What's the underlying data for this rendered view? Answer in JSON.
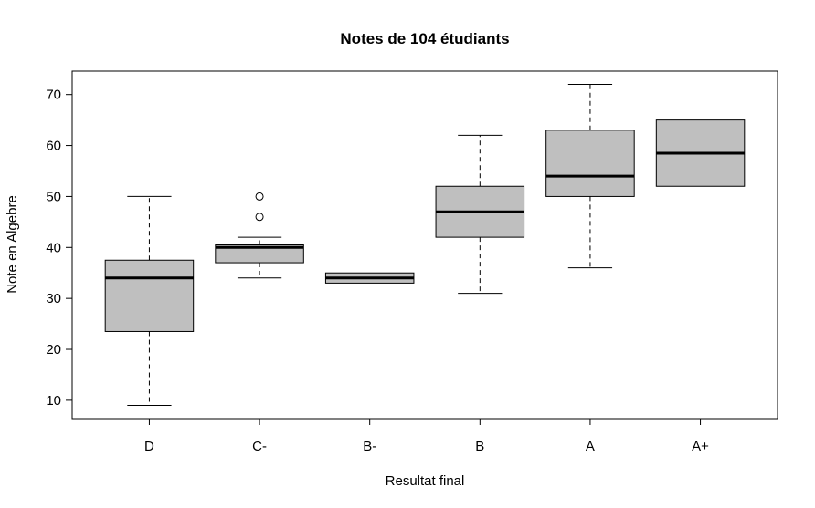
{
  "chart_data": {
    "type": "boxplot",
    "title": "Notes de 104 étudiants",
    "xlabel": "Resultat final",
    "ylabel": "Note en Algebre",
    "categories": [
      "D",
      "C-",
      "B-",
      "B",
      "A",
      "A+"
    ],
    "y_ticks": [
      10,
      20,
      30,
      40,
      50,
      60,
      70
    ],
    "ylim": [
      6.4,
      74.6
    ],
    "grid": false,
    "legend": "none",
    "boxes": [
      {
        "category": "D",
        "whisker_low": 9,
        "q1": 23.5,
        "median": 34,
        "q3": 37.5,
        "whisker_high": 50,
        "outliers": []
      },
      {
        "category": "C-",
        "whisker_low": 34,
        "q1": 37,
        "median": 40,
        "q3": 40.5,
        "whisker_high": 42,
        "outliers": [
          46,
          50
        ]
      },
      {
        "category": "B-",
        "whisker_low": 33,
        "q1": 33,
        "median": 34,
        "q3": 35,
        "whisker_high": 35,
        "outliers": []
      },
      {
        "category": "B",
        "whisker_low": 31,
        "q1": 42,
        "median": 47,
        "q3": 52,
        "whisker_high": 62,
        "outliers": []
      },
      {
        "category": "A",
        "whisker_low": 36,
        "q1": 50,
        "median": 54,
        "q3": 63,
        "whisker_high": 72,
        "outliers": []
      },
      {
        "category": "A+",
        "whisker_low": 52,
        "q1": 52,
        "median": 58.5,
        "q3": 65,
        "whisker_high": 65,
        "outliers": []
      }
    ],
    "colors": {
      "box_fill": "#bfbfbf",
      "stroke": "#000000"
    }
  }
}
